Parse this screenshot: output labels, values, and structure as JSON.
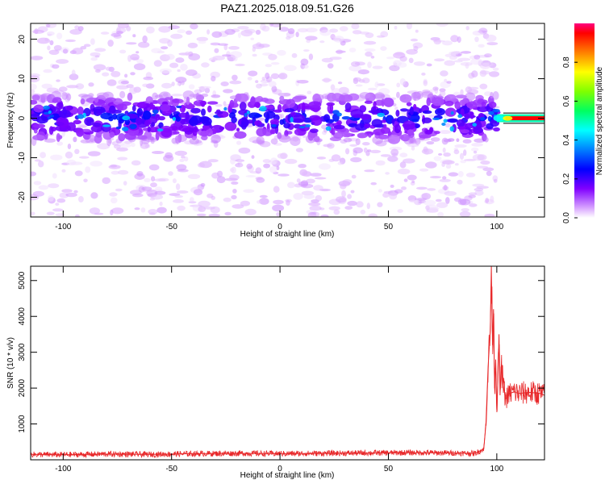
{
  "figure": {
    "title": "PAZ1.2025.018.09.51.G26"
  },
  "chart_data": [
    {
      "type": "heatmap",
      "title": "PAZ1.2025.018.09.51.G26",
      "xlabel": "Height of straight line (km)",
      "ylabel": "Frequency (Hz)",
      "xlim": [
        -115,
        122
      ],
      "ylim": [
        -25,
        24
      ],
      "x_ticks": [
        -100,
        -50,
        0,
        50,
        100
      ],
      "y_ticks": [
        -20,
        -10,
        0,
        10,
        20
      ],
      "grid": false,
      "colorbar": {
        "label": "Normalized spectral amplitude",
        "range": [
          0,
          1
        ],
        "ticks": [
          0.0,
          0.2,
          0.4,
          0.6,
          0.8
        ],
        "colormap": [
          "#ffffff",
          "#f0e0ff",
          "#8000ff",
          "#0000ff",
          "#00ffff",
          "#00ff00",
          "#ffff00",
          "#ff0000",
          "#ff0080"
        ]
      },
      "signal_band": {
        "center_hz": 0,
        "halfwidth_hz": 6,
        "strong_region_x": [
          100,
          122
        ],
        "strong_amplitude": 0.95
      }
    },
    {
      "type": "line",
      "xlabel": "Height of straight line (km)",
      "ylabel": "SNR (10 * v/v)",
      "xlim": [
        -115,
        122
      ],
      "ylim": [
        0,
        5400
      ],
      "x_ticks": [
        -100,
        -50,
        0,
        50,
        100
      ],
      "y_ticks": [
        1000,
        2000,
        3000,
        4000,
        5000
      ],
      "grid": false,
      "series": [
        {
          "color": "#e8282a",
          "x": [
            -115,
            -100,
            -80,
            -60,
            -40,
            -20,
            0,
            20,
            40,
            60,
            80,
            90,
            94,
            95,
            96,
            97,
            97.5,
            98,
            98.5,
            99,
            99.5,
            100,
            100.5,
            101,
            101.5,
            102,
            103,
            104,
            106,
            108,
            110,
            115,
            120,
            122
          ],
          "y": [
            150,
            140,
            160,
            150,
            170,
            180,
            170,
            180,
            190,
            200,
            190,
            180,
            300,
            1000,
            2600,
            3600,
            5400,
            3200,
            4200,
            2000,
            2800,
            1400,
            2200,
            3500,
            1800,
            2600,
            2100,
            1700,
            1850,
            1900,
            1850,
            1880,
            1850,
            1800
          ]
        }
      ]
    }
  ]
}
